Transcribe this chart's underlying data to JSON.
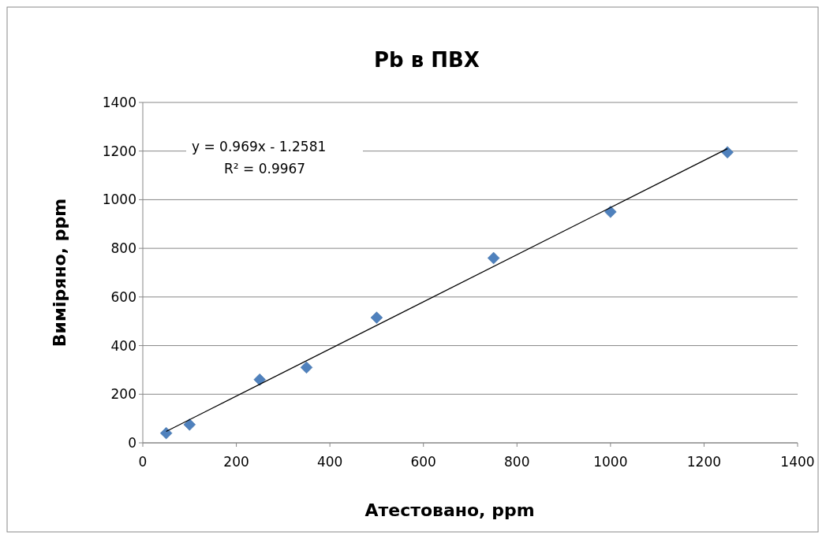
{
  "chart_data": {
    "type": "scatter",
    "title": "Pb в ПВХ",
    "xlabel": "Атестовано, ppm",
    "ylabel": "Виміряно, ppm",
    "xlim": [
      0,
      1400
    ],
    "xticks": [
      0,
      200,
      400,
      600,
      800,
      1000,
      1200,
      1400
    ],
    "ylim": [
      0,
      1400
    ],
    "yticks": [
      0,
      200,
      400,
      600,
      800,
      1000,
      1200,
      1400
    ],
    "grid": "y",
    "marker": "diamond",
    "annotations": [
      "y = 0.969x - 1.2581",
      "R² = 0.9967"
    ],
    "series": [
      {
        "color": "#4f81bd",
        "x": [
          50,
          100,
          250,
          350,
          500,
          750,
          1000,
          1250
        ],
        "values": [
          40,
          75,
          260,
          310,
          515,
          760,
          950,
          1195
        ]
      },
      {
        "type": "line",
        "color": "#000000",
        "marker": "none",
        "x": [
          50,
          1250
        ],
        "values": [
          47,
          1210
        ]
      }
    ]
  }
}
